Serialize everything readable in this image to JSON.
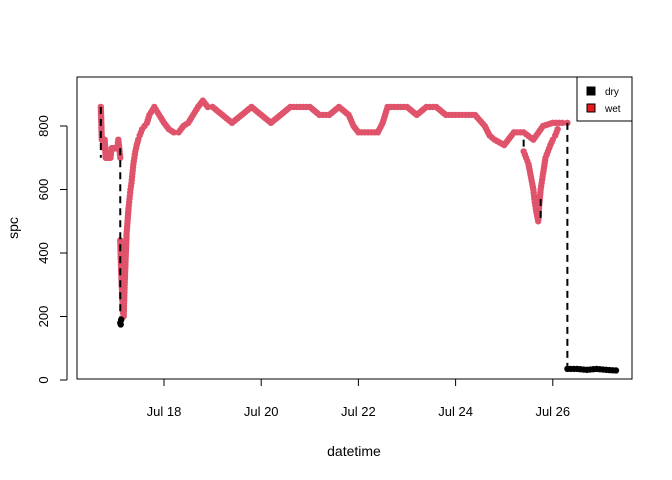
{
  "chart_data": {
    "type": "scatter",
    "title": "",
    "xlabel": "datetime",
    "ylabel": "spc",
    "x_unit": "date (July, days)",
    "xlim": [
      16.55,
      27.5
    ],
    "ylim": [
      0,
      920
    ],
    "x_ticks": [
      {
        "value": 18,
        "label": "Jul 18"
      },
      {
        "value": 20,
        "label": "Jul 20"
      },
      {
        "value": 22,
        "label": "Jul 22"
      },
      {
        "value": 24,
        "label": "Jul 24"
      },
      {
        "value": 26,
        "label": "Jul 26"
      }
    ],
    "y_ticks": [
      0,
      200,
      400,
      600,
      800
    ],
    "legend": {
      "position": "top-right",
      "items": [
        {
          "label": "dry",
          "color": "#000000"
        },
        {
          "label": "wet",
          "color": "#e41a1c"
        }
      ]
    },
    "colors": {
      "wet_points": "#df536b",
      "dry_points": "#000000"
    },
    "series": [
      {
        "name": "wet",
        "color": "#df536b",
        "segments": [
          [
            [
              16.7,
              860
            ],
            [
              16.72,
              757
            ],
            [
              16.74,
              757
            ],
            [
              16.76,
              730
            ],
            [
              16.78,
              757
            ],
            [
              16.8,
              700
            ],
            [
              16.82,
              700
            ],
            [
              16.84,
              700
            ],
            [
              16.86,
              700
            ],
            [
              16.88,
              700
            ],
            [
              16.9,
              700
            ],
            [
              16.92,
              730
            ],
            [
              16.94,
              730
            ],
            [
              16.96,
              730
            ],
            [
              16.98,
              730
            ],
            [
              17.0,
              730
            ],
            [
              17.02,
              730
            ],
            [
              17.04,
              730
            ],
            [
              17.06,
              757
            ],
            [
              17.08,
              730
            ],
            [
              17.1,
              700
            ]
          ],
          [
            [
              17.1,
              440
            ],
            [
              17.11,
              380
            ],
            [
              17.12,
              340
            ],
            [
              17.13,
              300
            ],
            [
              17.14,
              260
            ],
            [
              17.15,
              230
            ],
            [
              17.16,
              210
            ],
            [
              17.17,
              200
            ],
            [
              17.18,
              250
            ],
            [
              17.19,
              300
            ],
            [
              17.2,
              340
            ],
            [
              17.21,
              380
            ],
            [
              17.22,
              420
            ],
            [
              17.23,
              460
            ],
            [
              17.25,
              500
            ],
            [
              17.27,
              540
            ],
            [
              17.29,
              570
            ],
            [
              17.31,
              600
            ],
            [
              17.33,
              620
            ],
            [
              17.35,
              650
            ],
            [
              17.37,
              680
            ],
            [
              17.39,
              700
            ],
            [
              17.41,
              720
            ],
            [
              17.44,
              740
            ],
            [
              17.47,
              757
            ],
            [
              17.5,
              770
            ],
            [
              17.55,
              790
            ],
            [
              17.6,
              800
            ],
            [
              17.65,
              810
            ],
            [
              17.7,
              835
            ],
            [
              17.8,
              860
            ],
            [
              17.9,
              835
            ],
            [
              18.0,
              810
            ],
            [
              18.1,
              790
            ],
            [
              18.2,
              780
            ],
            [
              18.3,
              780
            ],
            [
              18.4,
              800
            ],
            [
              18.5,
              810
            ],
            [
              18.6,
              835
            ],
            [
              18.7,
              860
            ],
            [
              18.8,
              880
            ],
            [
              18.9,
              860
            ],
            [
              19.0,
              860
            ],
            [
              19.2,
              835
            ],
            [
              19.4,
              810
            ],
            [
              19.6,
              835
            ],
            [
              19.8,
              860
            ],
            [
              20.0,
              835
            ],
            [
              20.2,
              810
            ],
            [
              20.4,
              835
            ],
            [
              20.6,
              860
            ],
            [
              20.8,
              860
            ],
            [
              21.0,
              860
            ],
            [
              21.2,
              835
            ],
            [
              21.4,
              835
            ],
            [
              21.6,
              860
            ],
            [
              21.8,
              835
            ],
            [
              21.9,
              800
            ],
            [
              22.0,
              780
            ],
            [
              22.2,
              780
            ],
            [
              22.4,
              780
            ],
            [
              22.5,
              810
            ],
            [
              22.6,
              860
            ],
            [
              22.8,
              860
            ],
            [
              23.0,
              860
            ],
            [
              23.2,
              835
            ],
            [
              23.4,
              860
            ],
            [
              23.6,
              860
            ],
            [
              23.8,
              835
            ],
            [
              24.0,
              835
            ],
            [
              24.2,
              835
            ],
            [
              24.4,
              835
            ],
            [
              24.6,
              800
            ],
            [
              24.7,
              770
            ],
            [
              24.8,
              757
            ],
            [
              25.0,
              740
            ],
            [
              25.2,
              780
            ],
            [
              25.4,
              780
            ],
            [
              25.6,
              757
            ],
            [
              25.8,
              800
            ],
            [
              26.0,
              810
            ],
            [
              26.2,
              810
            ],
            [
              26.3,
              810
            ]
          ],
          [
            [
              25.4,
              720
            ],
            [
              25.45,
              700
            ],
            [
              25.5,
              680
            ],
            [
              25.55,
              640
            ],
            [
              25.6,
              600
            ],
            [
              25.62,
              570
            ],
            [
              25.65,
              540
            ],
            [
              25.7,
              500
            ],
            [
              25.72,
              550
            ],
            [
              25.75,
              600
            ],
            [
              25.78,
              630
            ],
            [
              25.8,
              650
            ],
            [
              25.85,
              700
            ],
            [
              25.9,
              720
            ],
            [
              25.95,
              740
            ],
            [
              26.0,
              757
            ],
            [
              26.05,
              770
            ],
            [
              26.1,
              790
            ]
          ]
        ]
      },
      {
        "name": "dry",
        "color": "#000000",
        "segments": [
          [
            [
              17.1,
              180
            ],
            [
              17.11,
              175
            ],
            [
              17.12,
              190
            ]
          ],
          [
            [
              26.3,
              35
            ],
            [
              26.5,
              35
            ],
            [
              26.7,
              32
            ],
            [
              26.9,
              35
            ],
            [
              27.1,
              32
            ],
            [
              27.3,
              30
            ]
          ]
        ]
      }
    ]
  }
}
